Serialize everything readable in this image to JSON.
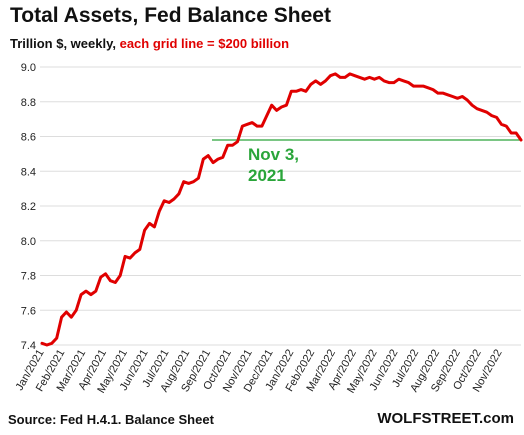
{
  "chart_data": {
    "type": "line",
    "title": "Total Assets, Fed Balance Sheet",
    "subtitle_prefix": "Trillion $, weekly, ",
    "subtitle_highlight": "each grid line = $200 billion",
    "colors": {
      "series": "#e00000",
      "reference_line": "#2aa53a",
      "grid": "#dddddd",
      "subtitle_highlight": "#e00000"
    },
    "ylim": [
      7.4,
      9.0
    ],
    "yticks": [
      "7.4",
      "7.6",
      "7.8",
      "8.0",
      "8.2",
      "8.4",
      "8.6",
      "8.8",
      "9.0"
    ],
    "xlabels": [
      "Jan/2021",
      "Feb/2021",
      "Mar/2021",
      "Apr/2021",
      "May/2021",
      "Jun/2021",
      "Jul/2021",
      "Aug/2021",
      "Sep/2021",
      "Oct/2021",
      "Nov/2021",
      "Dec/2021",
      "Jan/2022",
      "Feb/2022",
      "Mar/2022",
      "Apr/2022",
      "May/2022",
      "Jun/2022",
      "Jul/2022",
      "Aug/2022",
      "Sep/2022",
      "Oct/2022",
      "Nov/2022"
    ],
    "grid": "horizontal",
    "series": [
      {
        "values": [
          7.41,
          7.4,
          7.41,
          7.44,
          7.56,
          7.59,
          7.56,
          7.6,
          7.69,
          7.71,
          7.69,
          7.71,
          7.79,
          7.81,
          7.77,
          7.76,
          7.8,
          7.91,
          7.9,
          7.93,
          7.95,
          8.06,
          8.1,
          8.08,
          8.17,
          8.23,
          8.22,
          8.24,
          8.27,
          8.34,
          8.33,
          8.34,
          8.36,
          8.47,
          8.49,
          8.45,
          8.47,
          8.48,
          8.55,
          8.55,
          8.57,
          8.66,
          8.67,
          8.68,
          8.66,
          8.66,
          8.72,
          8.78,
          8.75,
          8.77,
          8.78,
          8.86,
          8.86,
          8.87,
          8.86,
          8.9,
          8.92,
          8.9,
          8.92,
          8.95,
          8.96,
          8.94,
          8.94,
          8.96,
          8.95,
          8.94,
          8.93,
          8.94,
          8.93,
          8.94,
          8.92,
          8.91,
          8.91,
          8.93,
          8.92,
          8.91,
          8.89,
          8.89,
          8.89,
          8.88,
          8.87,
          8.85,
          8.85,
          8.84,
          8.83,
          8.82,
          8.83,
          8.81,
          8.78,
          8.76,
          8.75,
          8.74,
          8.72,
          8.71,
          8.67,
          8.66,
          8.62,
          8.62,
          8.58
        ]
      }
    ],
    "reference": {
      "value": 8.58,
      "label_line1": "Nov 3,",
      "label_line2": "2021"
    },
    "source": "Source: Fed H.4.1. Balance Sheet",
    "brand": "WOLFSTREET.com"
  }
}
